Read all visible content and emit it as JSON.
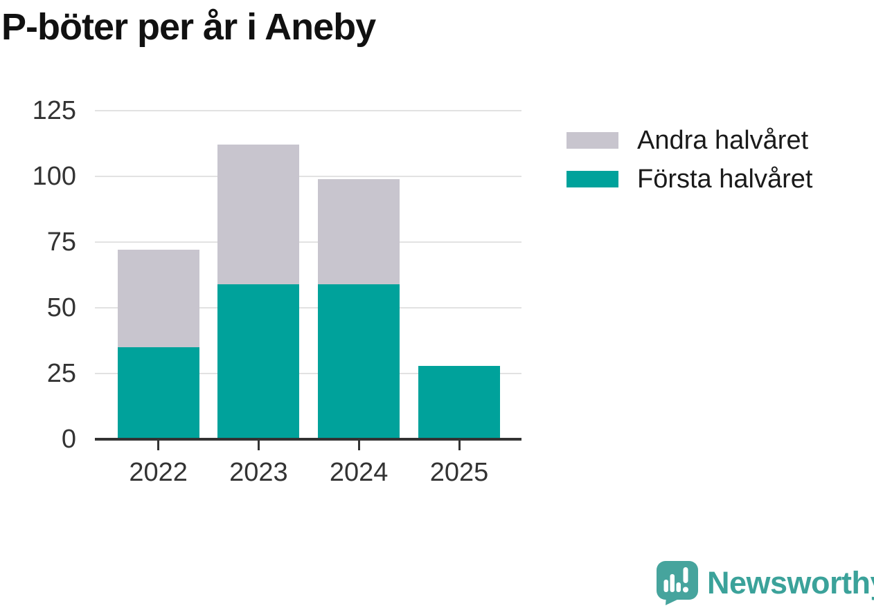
{
  "title": "P-böter per år i Aneby",
  "chart_data": {
    "type": "bar",
    "stacked": true,
    "title": "P-böter per år i Aneby",
    "categories": [
      "2022",
      "2023",
      "2024",
      "2025"
    ],
    "series": [
      {
        "name": "Första halvåret",
        "color": "#00a29b",
        "values": [
          35,
          59,
          59,
          28
        ]
      },
      {
        "name": "Andra halvåret",
        "color": "#c8c5ce",
        "values": [
          37,
          53,
          40,
          0
        ]
      }
    ],
    "totals": [
      72,
      112,
      99,
      28
    ],
    "xlabel": "",
    "ylabel": "",
    "ylim": [
      0,
      125
    ],
    "yticks": [
      0,
      25,
      50,
      75,
      100,
      125
    ],
    "grid": "horizontal",
    "legend_position": "right",
    "legend_order": [
      "Andra halvåret",
      "Första halvåret"
    ]
  },
  "legend": {
    "items": [
      {
        "label": "Andra halvåret",
        "color": "#c8c5ce"
      },
      {
        "label": "Första halvåret",
        "color": "#00a29b"
      }
    ]
  },
  "branding": {
    "name": "Newsworthy",
    "logo_icon": "newsworthy-speech-bubble-chart-icon",
    "wordmark_color": "#3ba29a",
    "icon_color": "#46a49d"
  },
  "colors": {
    "first_half": "#00a29b",
    "second_half": "#c8c5ce",
    "gridline": "#e2e2e2",
    "axis": "#333333",
    "title_text": "#111111",
    "label_text": "#333333"
  }
}
